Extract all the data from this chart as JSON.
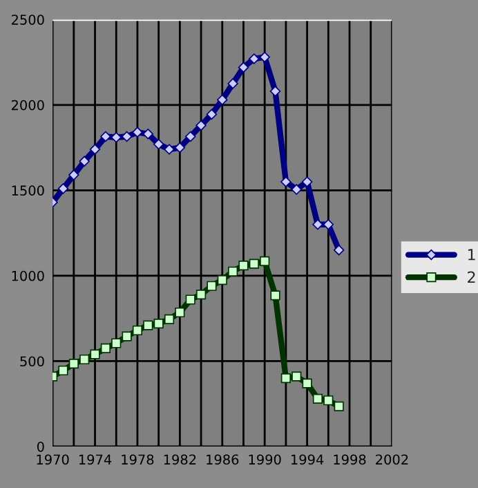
{
  "chart_data": {
    "type": "line",
    "x": [
      1970,
      1971,
      1972,
      1973,
      1974,
      1975,
      1976,
      1977,
      1978,
      1979,
      1980,
      1981,
      1982,
      1983,
      1984,
      1985,
      1986,
      1987,
      1988,
      1989,
      1990,
      1991,
      1992,
      1993,
      1994,
      1995,
      1996,
      1997
    ],
    "series": [
      {
        "name": "1",
        "color": "#000080",
        "marker": "diamond",
        "values": [
          1430,
          1510,
          1590,
          1670,
          1740,
          1815,
          1810,
          1815,
          1840,
          1830,
          1770,
          1740,
          1750,
          1815,
          1880,
          1945,
          2030,
          2125,
          2220,
          2270,
          2280,
          2080,
          1550,
          1505,
          1550,
          1300,
          1300,
          1150
        ]
      },
      {
        "name": "2",
        "color": "#003300",
        "marker": "square",
        "values": [
          410,
          445,
          485,
          510,
          540,
          575,
          605,
          645,
          680,
          710,
          720,
          745,
          785,
          860,
          890,
          940,
          975,
          1025,
          1060,
          1070,
          1085,
          885,
          400,
          410,
          370,
          280,
          270,
          235
        ]
      }
    ],
    "xlim": [
      1970,
      2002
    ],
    "xticks": [
      1970,
      {
        "value": 1972,
        "label": null
      },
      1974,
      {
        "value": 1976,
        "label": null
      },
      1978,
      {
        "value": 1980,
        "label": null
      },
      1982,
      {
        "value": 1984,
        "label": null
      },
      1986,
      {
        "value": 1988,
        "label": null
      },
      1990,
      {
        "value": 1992,
        "label": null
      },
      1994,
      {
        "value": 1996,
        "label": null
      },
      1998,
      {
        "value": 2000,
        "label": null
      },
      2002
    ],
    "ylim": [
      0,
      2500
    ],
    "yticks": [
      0,
      500,
      1000,
      1500,
      2000,
      2500
    ],
    "grid": true,
    "legend": "right",
    "line_style": "solid"
  }
}
